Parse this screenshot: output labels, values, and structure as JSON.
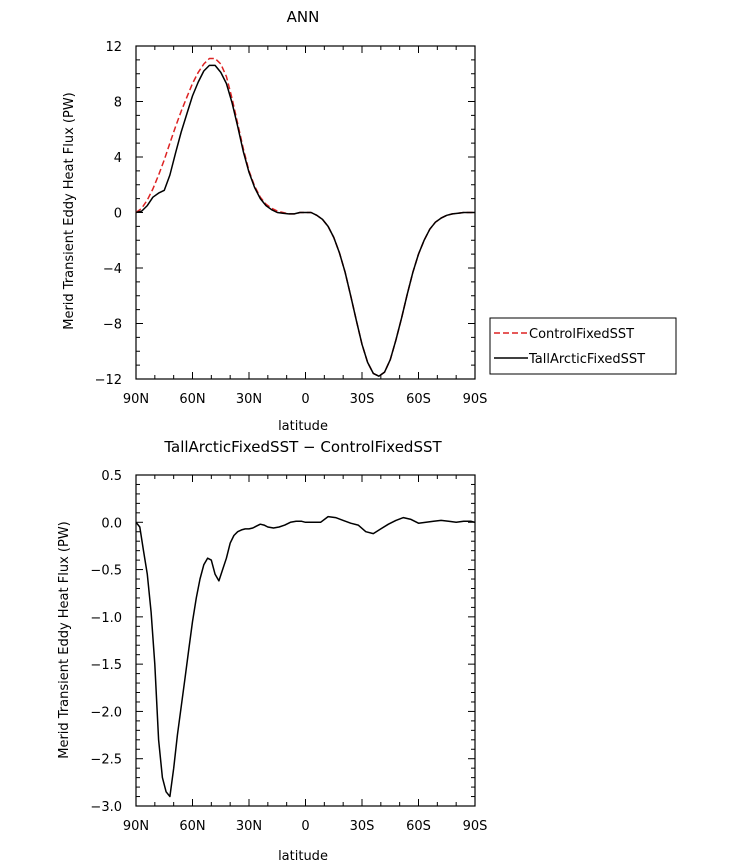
{
  "chart_data": [
    {
      "type": "line",
      "title": "ANN",
      "xlabel": "latitude",
      "ylabel": "Merid Transient Eddy Heat Flux (PW)",
      "x_ticks": [
        90,
        60,
        30,
        0,
        -30,
        -60,
        -90
      ],
      "x_tick_labels": [
        "90N",
        "60N",
        "30N",
        "0",
        "30S",
        "60S",
        "90S"
      ],
      "xlim": [
        90,
        -90
      ],
      "ylim": [
        -12,
        12
      ],
      "y_ticks": [
        12,
        8,
        4,
        0,
        -4,
        -8,
        -12
      ],
      "y_tick_labels": [
        "12",
        "8",
        "4",
        "0",
        "−4",
        "−8",
        "−12"
      ],
      "legend_position": "right",
      "series": [
        {
          "name": "ControlFixedSST",
          "color": "#dd2222",
          "dash": "dashed",
          "x": [
            90,
            87,
            84,
            81,
            78,
            75,
            72,
            69,
            66,
            63,
            60,
            57,
            54,
            51,
            48,
            45,
            42,
            39,
            36,
            33,
            30,
            27,
            24,
            21,
            18,
            15,
            12,
            9,
            6,
            3,
            0,
            -3,
            -6,
            -9,
            -12,
            -15,
            -18,
            -21,
            -24,
            -27,
            -30,
            -33,
            -36,
            -39,
            -42,
            -45,
            -48,
            -51,
            -54,
            -57,
            -60,
            -63,
            -66,
            -69,
            -72,
            -75,
            -78,
            -81,
            -84,
            -87,
            -90
          ],
          "y": [
            0,
            0.3,
            0.9,
            1.7,
            2.7,
            3.8,
            5.0,
            6.2,
            7.3,
            8.3,
            9.3,
            10.1,
            10.7,
            11.1,
            11.1,
            10.7,
            9.8,
            8.2,
            6.4,
            4.6,
            3.0,
            1.9,
            1.1,
            0.6,
            0.3,
            0.1,
            0.0,
            -0.1,
            -0.1,
            0.0,
            0.0,
            0.0,
            -0.2,
            -0.5,
            -1.0,
            -1.8,
            -2.9,
            -4.3,
            -6.0,
            -7.8,
            -9.5,
            -10.8,
            -11.6,
            -11.8,
            -11.5,
            -10.6,
            -9.2,
            -7.6,
            -5.9,
            -4.3,
            -3.0,
            -2.0,
            -1.2,
            -0.7,
            -0.4,
            -0.2,
            -0.1,
            -0.05,
            0,
            0,
            0
          ]
        },
        {
          "name": "TallArcticFixedSST",
          "color": "#000000",
          "dash": "solid",
          "x": [
            90,
            87,
            84,
            81,
            78,
            75,
            72,
            69,
            66,
            63,
            60,
            57,
            54,
            51,
            48,
            45,
            42,
            39,
            36,
            33,
            30,
            27,
            24,
            21,
            18,
            15,
            12,
            9,
            6,
            3,
            0,
            -3,
            -6,
            -9,
            -12,
            -15,
            -18,
            -21,
            -24,
            -27,
            -30,
            -33,
            -36,
            -39,
            -42,
            -45,
            -48,
            -51,
            -54,
            -57,
            -60,
            -63,
            -66,
            -69,
            -72,
            -75,
            -78,
            -81,
            -84,
            -87,
            -90
          ],
          "y": [
            0,
            0.1,
            0.5,
            1.1,
            1.4,
            1.6,
            2.7,
            4.3,
            5.8,
            7.1,
            8.4,
            9.4,
            10.2,
            10.6,
            10.6,
            10.1,
            9.3,
            7.9,
            6.2,
            4.4,
            2.9,
            1.8,
            1.0,
            0.5,
            0.2,
            0.0,
            -0.05,
            -0.1,
            -0.1,
            0.0,
            0.0,
            0.0,
            -0.2,
            -0.5,
            -1.0,
            -1.8,
            -2.9,
            -4.3,
            -6.0,
            -7.8,
            -9.5,
            -10.8,
            -11.6,
            -11.8,
            -11.5,
            -10.6,
            -9.2,
            -7.6,
            -5.9,
            -4.3,
            -3.0,
            -2.0,
            -1.2,
            -0.7,
            -0.4,
            -0.2,
            -0.1,
            -0.05,
            0,
            0,
            0
          ]
        }
      ]
    },
    {
      "type": "line",
      "title": "TallArcticFixedSST − ControlFixedSST",
      "xlabel": "latitude",
      "ylabel": "Merid Transient Eddy Heat Flux (PW)",
      "x_ticks": [
        90,
        60,
        30,
        0,
        -30,
        -60,
        -90
      ],
      "x_tick_labels": [
        "90N",
        "60N",
        "30N",
        "0",
        "30S",
        "60S",
        "90S"
      ],
      "xlim": [
        90,
        -90
      ],
      "ylim": [
        -3.0,
        0.5
      ],
      "y_ticks": [
        0.5,
        0.0,
        -0.5,
        -1.0,
        -1.5,
        -2.0,
        -2.5,
        -3.0
      ],
      "y_tick_labels": [
        "0.5",
        "0.0",
        "−0.5",
        "−1.0",
        "−1.5",
        "−2.0",
        "−2.5",
        "−3.0"
      ],
      "series": [
        {
          "color": "#000000",
          "dash": "solid",
          "x": [
            90,
            88,
            86,
            84,
            82,
            80,
            78,
            76,
            74,
            72,
            70,
            68,
            66,
            64,
            62,
            60,
            58,
            56,
            54,
            52,
            50,
            48,
            46,
            44,
            42,
            40,
            38,
            36,
            34,
            32,
            30,
            28,
            26,
            24,
            22,
            20,
            17,
            14,
            11,
            8,
            5,
            2,
            0,
            -4,
            -8,
            -12,
            -16,
            -20,
            -24,
            -28,
            -32,
            -36,
            -40,
            -44,
            -48,
            -52,
            -56,
            -60,
            -64,
            -68,
            -72,
            -76,
            -80,
            -84,
            -88,
            -90
          ],
          "y": [
            0.0,
            -0.05,
            -0.3,
            -0.55,
            -0.95,
            -1.5,
            -2.3,
            -2.7,
            -2.85,
            -2.9,
            -2.6,
            -2.25,
            -1.95,
            -1.65,
            -1.35,
            -1.05,
            -0.8,
            -0.6,
            -0.45,
            -0.38,
            -0.4,
            -0.55,
            -0.62,
            -0.5,
            -0.38,
            -0.22,
            -0.14,
            -0.1,
            -0.08,
            -0.07,
            -0.07,
            -0.06,
            -0.04,
            -0.02,
            -0.03,
            -0.05,
            -0.06,
            -0.05,
            -0.03,
            0.0,
            0.01,
            0.01,
            0.0,
            0.0,
            0.0,
            0.06,
            0.05,
            0.02,
            -0.01,
            -0.03,
            -0.1,
            -0.12,
            -0.07,
            -0.02,
            0.02,
            0.05,
            0.03,
            -0.01,
            0.0,
            0.01,
            0.02,
            0.01,
            0.0,
            0.01,
            0.01,
            0.0
          ]
        }
      ]
    }
  ]
}
